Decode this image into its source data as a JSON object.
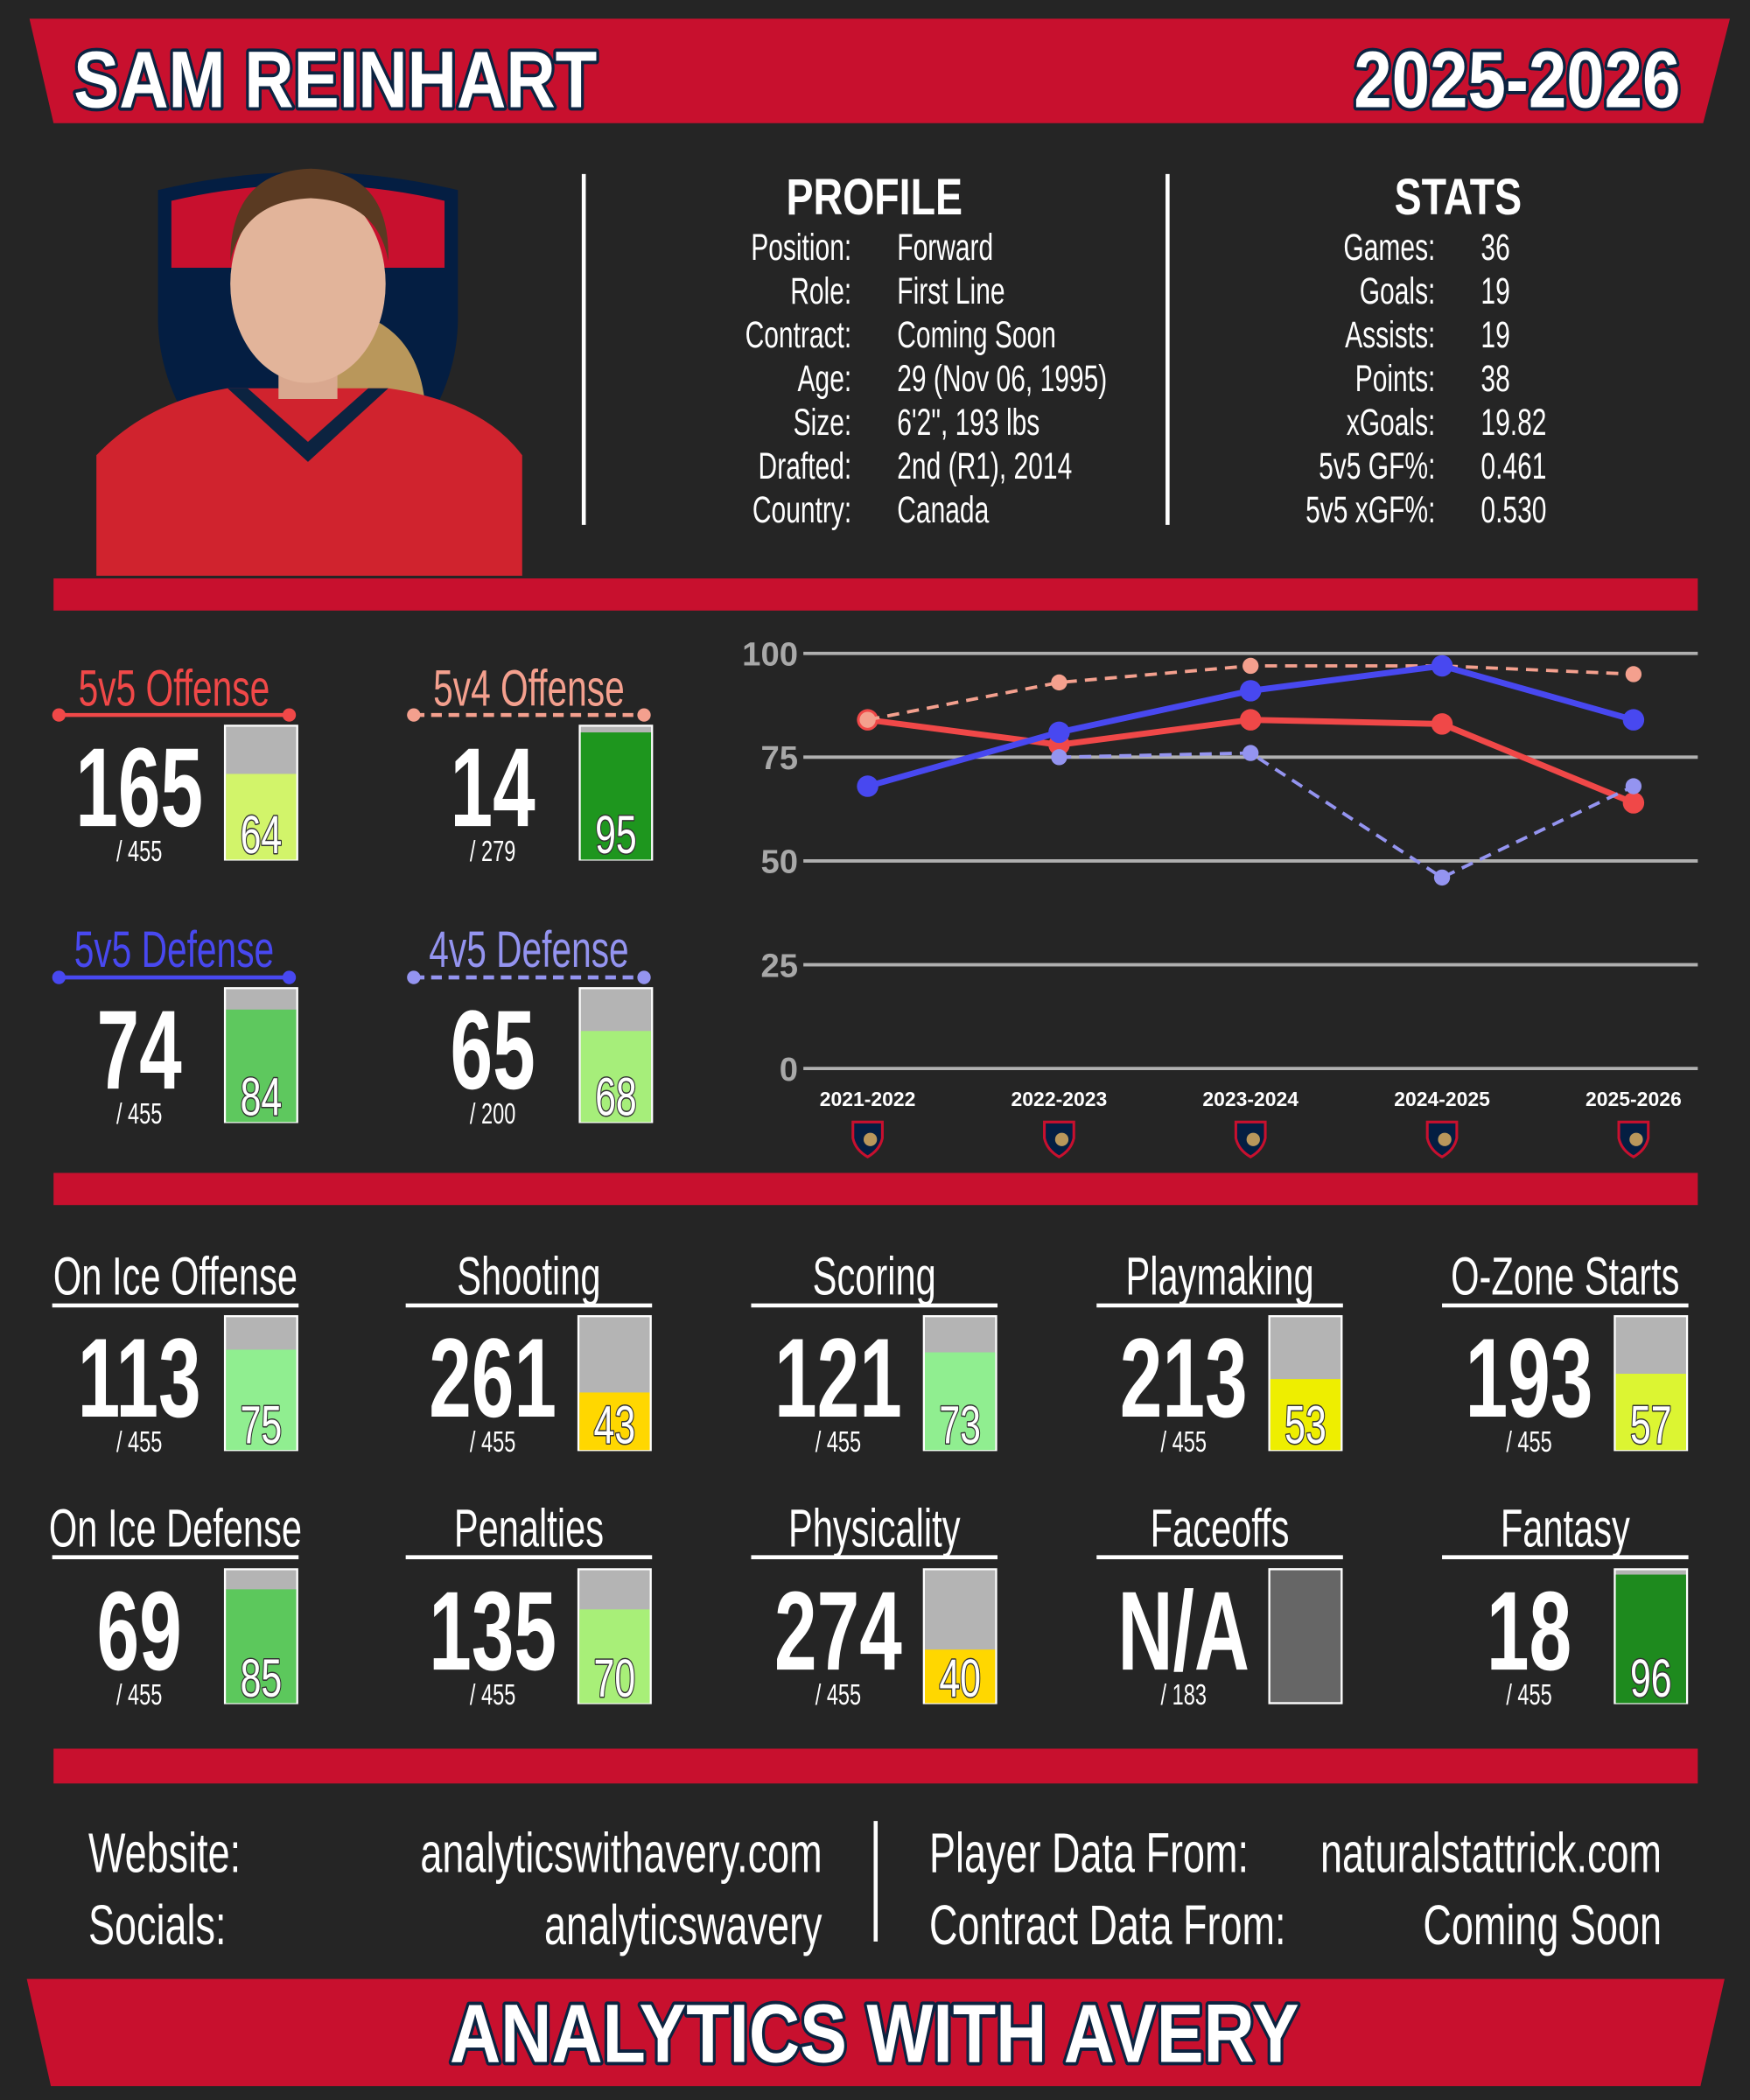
{
  "header": {
    "name": "SAM REINHART",
    "season": "2025-2026"
  },
  "profile": {
    "title": "PROFILE",
    "rows": [
      {
        "label": "Position:",
        "value": "Forward"
      },
      {
        "label": "Role:",
        "value": "First Line"
      },
      {
        "label": "Contract:",
        "value": "Coming Soon"
      },
      {
        "label": "Age:",
        "value": "29 (Nov 06, 1995)"
      },
      {
        "label": "Size:",
        "value": "6'2\", 193 lbs"
      },
      {
        "label": "Drafted:",
        "value": "2nd (R1), 2014"
      },
      {
        "label": "Country:",
        "value": "Canada"
      }
    ]
  },
  "stats": {
    "title": "STATS",
    "rows": [
      {
        "label": "Games:",
        "value": 36
      },
      {
        "label": "Goals:",
        "value": 19
      },
      {
        "label": "Assists:",
        "value": 19
      },
      {
        "label": "Points:",
        "value": 38
      },
      {
        "label": "xGoals:",
        "value": 19.82
      },
      {
        "label": "5v5 GF%:",
        "value": 0.461
      },
      {
        "label": "5v5 xGF%:",
        "value": {
          "value": 0.53,
          "label": "0.530"
        }
      }
    ]
  },
  "ratings": [
    {
      "rank": 165,
      "total": "/ 455",
      "percentile": 64,
      "color": "#d2f46a"
    },
    {
      "rank": 14,
      "total": "/ 279",
      "percentile": 95,
      "color": "#1e961e"
    },
    {
      "rank": 74,
      "total": "/ 455",
      "percentile": 84,
      "color": "#5ec85e"
    },
    {
      "rank": 65,
      "total": "/ 200",
      "percentile": 68,
      "color": "#a6ee7a"
    }
  ],
  "chart_data": {
    "type": "line",
    "x": [
      "2021-2022",
      "2022-2023",
      "2023-2024",
      "2024-2025",
      "2025-2026"
    ],
    "series": [
      {
        "name": "5v5 Offense",
        "color": "#f04848",
        "dashed": false,
        "values": [
          84,
          78,
          84,
          83,
          64
        ]
      },
      {
        "name": "5v4 Offense",
        "color": "#f4a08e",
        "dashed": true,
        "values": [
          84,
          93,
          97,
          97,
          95
        ]
      },
      {
        "name": "5v5 Defense",
        "color": "#4848f0",
        "dashed": false,
        "values": [
          68,
          81,
          91,
          97,
          84
        ]
      },
      {
        "name": "4v5 Defense",
        "color": "#9494f0",
        "dashed": true,
        "values": [
          null,
          75,
          76,
          46,
          68
        ]
      }
    ],
    "ylim": [
      0,
      100
    ],
    "yticks": [
      0,
      25,
      50,
      75,
      100
    ],
    "grid": true
  },
  "metrics": [
    {
      "name": "On Ice Offense",
      "rank": 113,
      "total": "/ 455",
      "percentile": 75,
      "color": "#90ee90"
    },
    {
      "name": "Shooting",
      "rank": 261,
      "total": "/ 455",
      "percentile": 43,
      "color": "#ffd700"
    },
    {
      "name": "Scoring",
      "rank": 121,
      "total": "/ 455",
      "percentile": 73,
      "color": "#90ee90"
    },
    {
      "name": "Playmaking",
      "rank": 213,
      "total": "/ 455",
      "percentile": 53,
      "color": "#eeee00"
    },
    {
      "name": "O-Zone Starts",
      "rank": 193,
      "total": "/ 455",
      "percentile": 57,
      "color": "#dcf532"
    },
    {
      "name": "On Ice Defense",
      "rank": 69,
      "total": "/ 455",
      "percentile": 85,
      "color": "#5cc85c"
    },
    {
      "name": "Penalties",
      "rank": 135,
      "total": "/ 455",
      "percentile": 70,
      "color": "#a8ef78"
    },
    {
      "name": "Physicality",
      "rank": 274,
      "total": "/ 455",
      "percentile": 40,
      "color": "#ffd700"
    },
    {
      "name": "Faceoffs",
      "rank": "N/A",
      "total": "/ 183",
      "percentile": null,
      "color": "#666666"
    },
    {
      "name": "Fantasy",
      "rank": 18,
      "total": "/ 455",
      "percentile": 96,
      "color": "#1e8a1e"
    }
  ],
  "footer": {
    "left": [
      {
        "label": "Website:",
        "value": "analyticswithavery.com"
      },
      {
        "label": "Socials:",
        "value": "analyticswavery"
      }
    ],
    "right": [
      {
        "label": "Player Data From:",
        "value": "naturalstattrick.com"
      },
      {
        "label": "Contract Data From:",
        "value": "Coming Soon"
      }
    ]
  },
  "brand": "ANALYTICS WITH AVERY"
}
